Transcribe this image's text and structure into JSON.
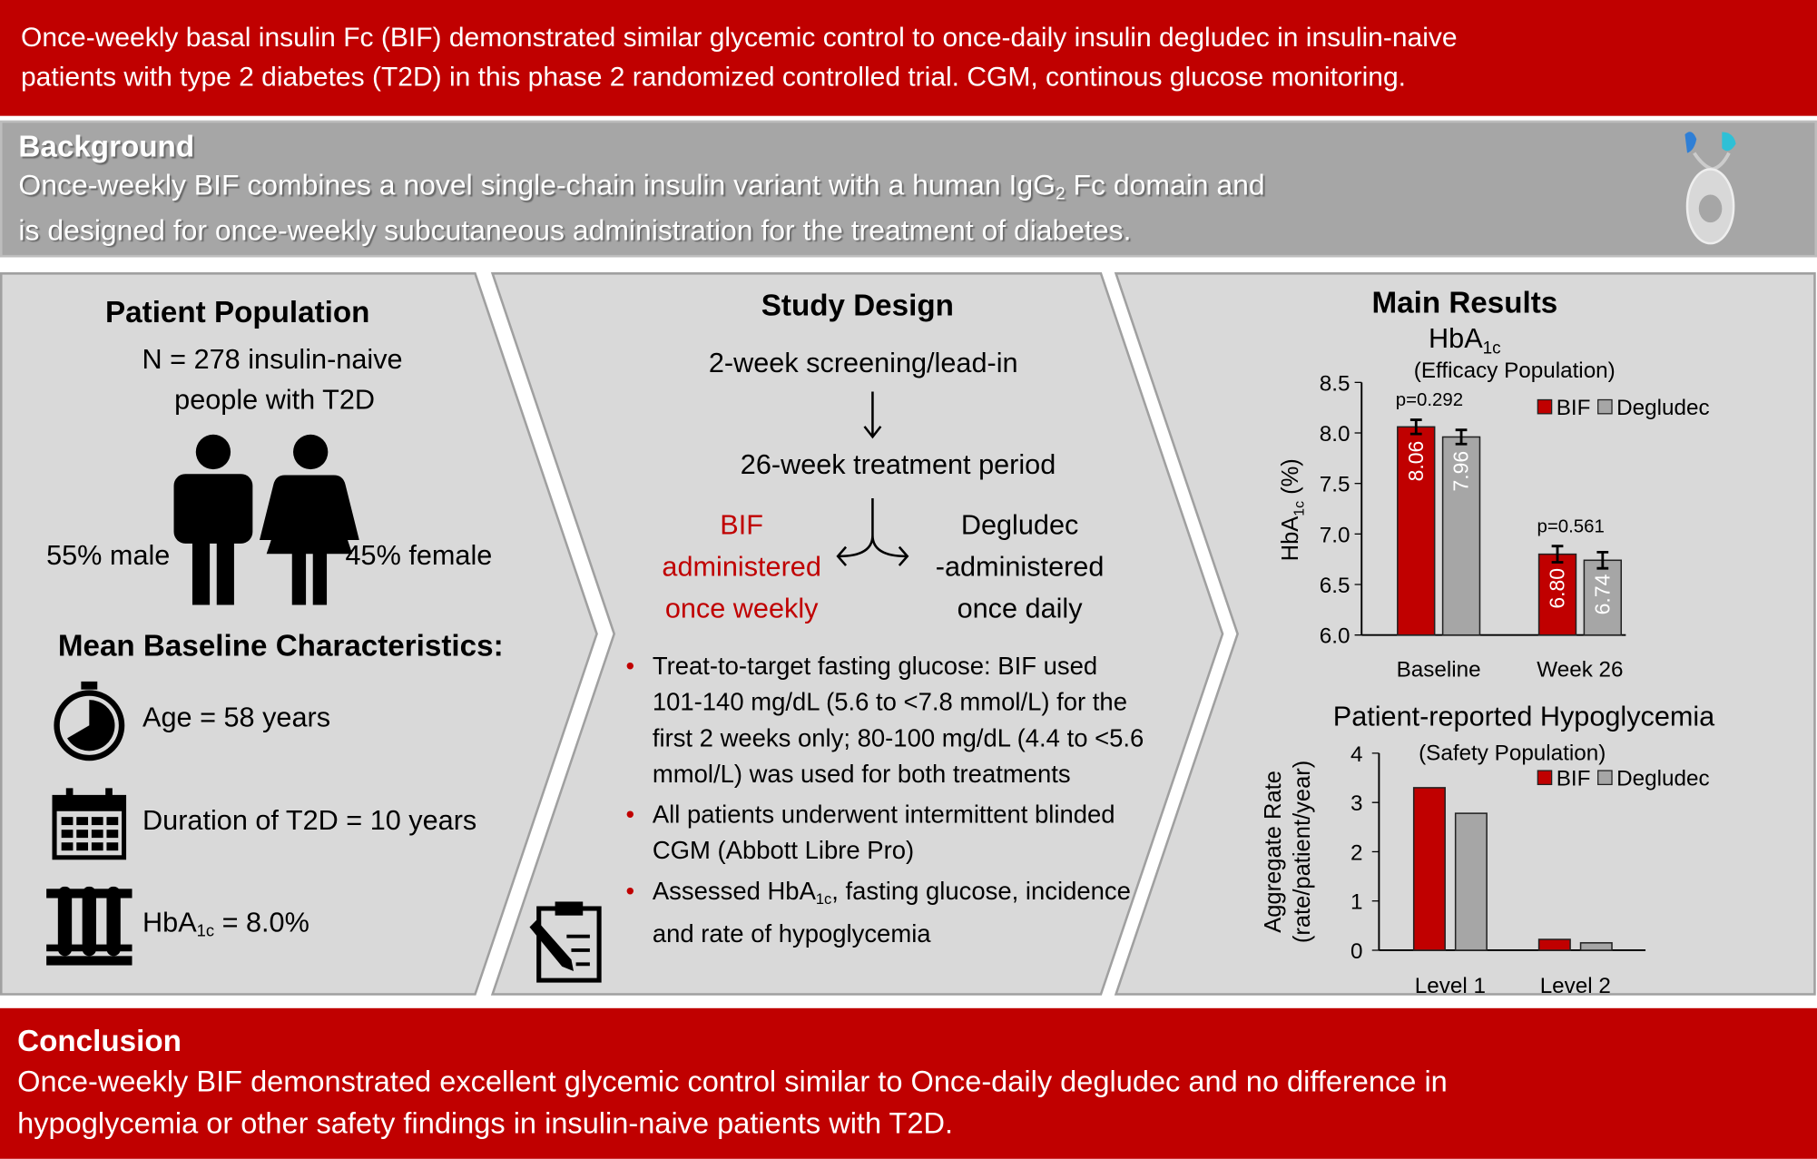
{
  "header": {
    "line1": "Once-weekly basal insulin Fc (BIF) demonstrated similar glycemic control to once-daily insulin degludec in insulin-naive",
    "line2": "patients with type 2 diabetes (T2D) in this phase 2 randomized controlled trial. CGM, continous glucose monitoring."
  },
  "background": {
    "title": "Background",
    "line1_a": "Once-weekly BIF combines a novel single-chain insulin variant with a human IgG",
    "line1_sub": "2",
    "line1_b": " Fc domain and",
    "line2": "is designed for once-weekly subcutaneous administration for the treatment of diabetes.",
    "image": "protein-structure-icon"
  },
  "population": {
    "title": "Patient Population",
    "n_line1": "N = 278 insulin-naive",
    "n_line2": "people with T2D",
    "male": "55% male",
    "female": "45% female",
    "baseline_title": "Mean Baseline Characteristics:",
    "age": "Age = 58 years",
    "duration": "Duration of T2D = 10 years",
    "hba1c_a": "HbA",
    "hba1c_sub": "1c",
    "hba1c_b": " = 8.0%"
  },
  "design": {
    "title": "Study Design",
    "screening": "2-week screening/lead-in",
    "treatment": "26-week treatment period",
    "bif": [
      "BIF",
      "administered",
      "once weekly"
    ],
    "degludec": [
      "Degludec",
      "-administered",
      "once daily"
    ],
    "bullets": [
      "Treat-to-target fasting glucose:  BIF used 101-140 mg/dL (5.6 to <7.8 mmol/L) for the first 2 weeks only;  80-100 mg/dL (4.4 to <5.6 mmol/L) was used for both treatments",
      "All patients underwent intermittent blinded CGM (Abbott Libre Pro)"
    ],
    "bullet3_a": "Assessed HbA",
    "bullet3_sub": "1c",
    "bullet3_b": ", fasting glucose, incidence and rate of hypoglycemia"
  },
  "results": {
    "title": "Main Results"
  },
  "conclusion": {
    "title": "Conclusion",
    "line1": "Once-weekly BIF demonstrated excellent glycemic control similar to Once-daily degludec and no difference in",
    "line2": "hypoglycemia or other safety findings in insulin-naive patients with T2D."
  },
  "colors": {
    "accent": "#c00000",
    "bif": "#c00000",
    "degludec": "#a6a6a6",
    "panel": "#d9d9d9"
  },
  "chart_data": [
    {
      "type": "bar",
      "title": "HbA1c",
      "title_a": "HbA",
      "title_sub": "1c",
      "subtitle": "(Efficacy Population)",
      "ylabel_a": "HbA",
      "ylabel_sub": "1c",
      "ylabel_b": " (%)",
      "categories": [
        "Baseline",
        "Week 26"
      ],
      "ylim": [
        6.0,
        8.5
      ],
      "yticks": [
        "6.0",
        "6.5",
        "7.0",
        "7.5",
        "8.0",
        "8.5"
      ],
      "series": [
        {
          "name": "BIF",
          "values": [
            8.06,
            6.8
          ],
          "errors": [
            0.07,
            0.08
          ],
          "labels": [
            "8.06",
            "6.80"
          ]
        },
        {
          "name": "Degludec",
          "values": [
            7.96,
            6.74
          ],
          "errors": [
            0.07,
            0.08
          ],
          "labels": [
            "7.96",
            "6.74"
          ]
        }
      ],
      "pvalues": [
        "p=0.292",
        "p=0.561"
      ],
      "legend": "top-right",
      "grid": false
    },
    {
      "type": "bar",
      "title": "Patient-reported Hypoglycemia",
      "subtitle": "(Safety Population)",
      "ylabel_1": "Aggregate Rate",
      "ylabel_2": "(rate/patient/year)",
      "categories": [
        "Level 1",
        "Level 2"
      ],
      "ylim": [
        0,
        4
      ],
      "yticks": [
        "0",
        "1",
        "2",
        "3",
        "4"
      ],
      "series": [
        {
          "name": "BIF",
          "values": [
            3.3,
            0.22
          ]
        },
        {
          "name": "Degludec",
          "values": [
            2.78,
            0.15
          ]
        }
      ],
      "legend": "top-right",
      "grid": false
    }
  ]
}
